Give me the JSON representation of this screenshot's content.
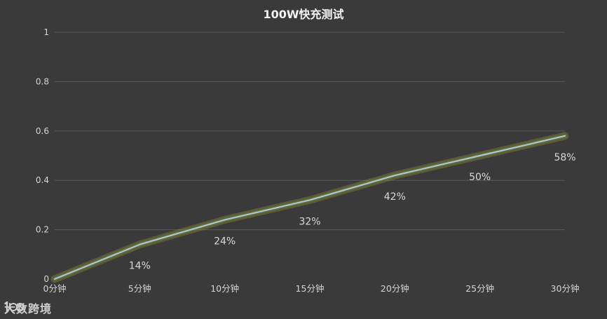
{
  "chart_data": {
    "type": "line",
    "title": "100W快充测试",
    "categories": [
      "0分钟",
      "5分钟",
      "10分钟",
      "15分钟",
      "20分钟",
      "25分钟",
      "30分钟"
    ],
    "series": [
      {
        "values": [
          0,
          0.14,
          0.24,
          0.32,
          0.42,
          0.5,
          0.58
        ],
        "data_labels": [
          "",
          "14%",
          "24%",
          "32%",
          "42%",
          "50%",
          "58%"
        ]
      }
    ],
    "ylim": [
      0,
      1
    ],
    "yticks": [
      "0",
      "0.2",
      "0.4",
      "0.6",
      "0.8",
      "1"
    ],
    "ytick_values": [
      0,
      0.2,
      0.4,
      0.6,
      0.8,
      1
    ],
    "grid": true,
    "line_color": "#a8c8d4",
    "glow_color": "#9a9a3a"
  },
  "watermark": {
    "logo_icon": "100-logo-icon",
    "text": "大数跨境"
  }
}
